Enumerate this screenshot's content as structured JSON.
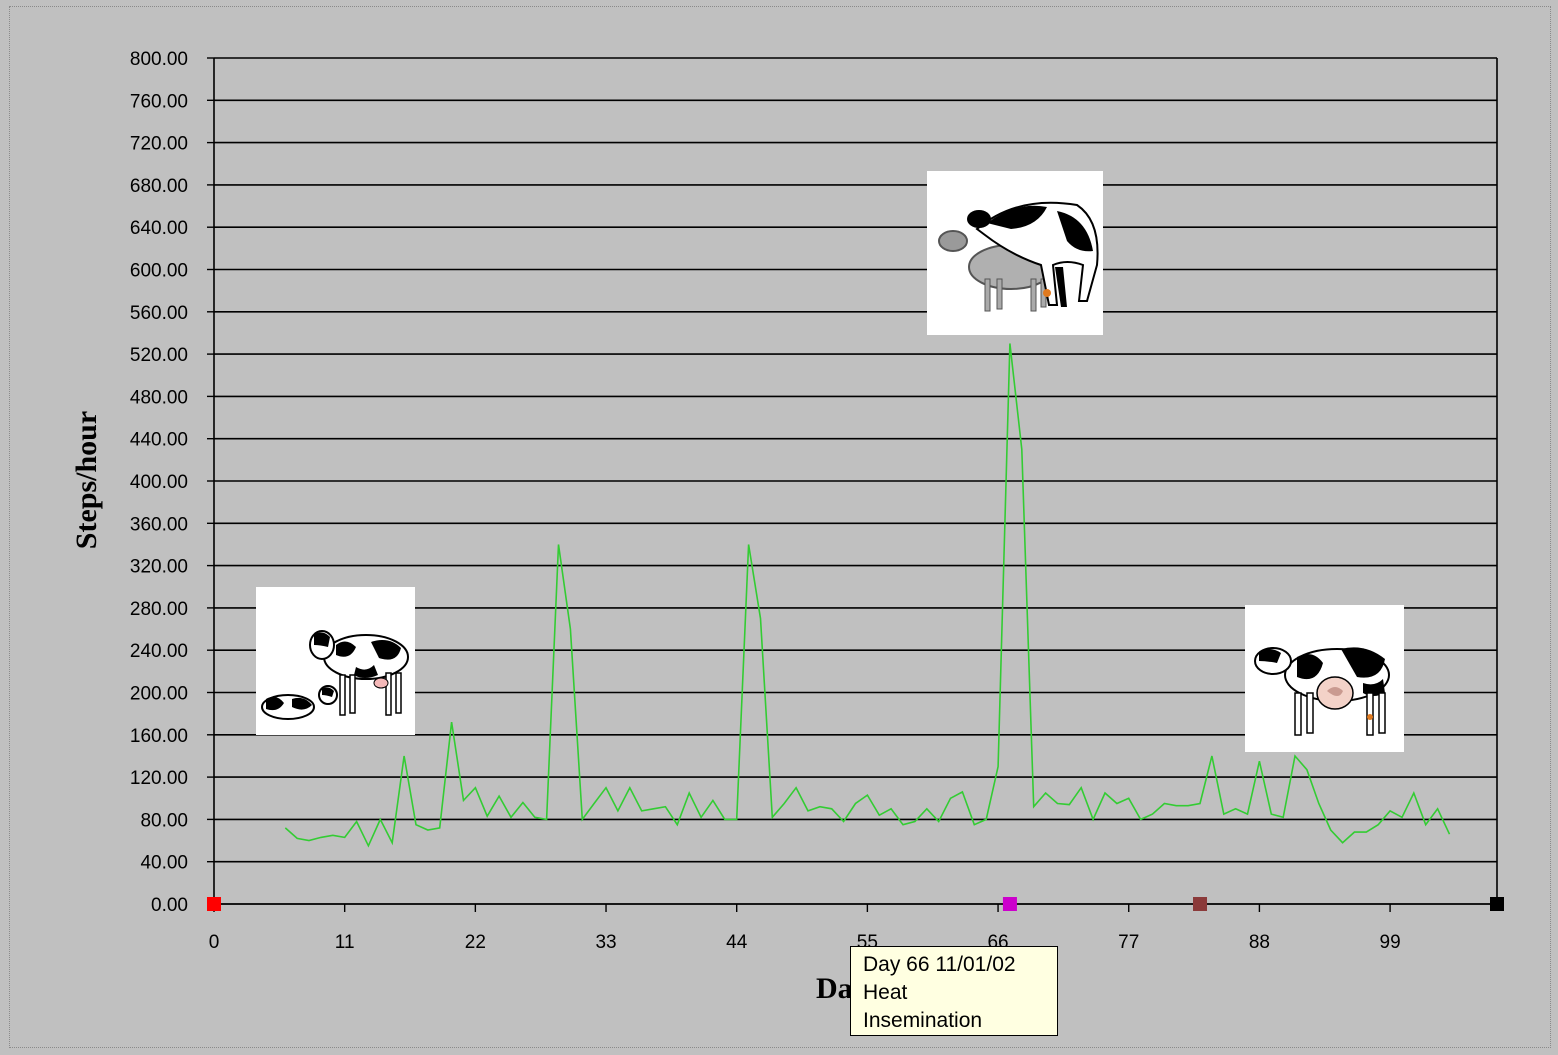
{
  "chart_data": {
    "type": "line",
    "title": "",
    "xlabel": "Da",
    "ylabel": "Steps/hour",
    "xlim": [
      0,
      108
    ],
    "ylim": [
      0,
      800
    ],
    "x_ticks": [
      "0",
      "11",
      "22",
      "33",
      "44",
      "55",
      "66",
      "77",
      "88",
      "99"
    ],
    "x_tick_values": [
      0,
      11,
      22,
      33,
      44,
      55,
      66,
      77,
      88,
      99
    ],
    "y_ticks": [
      "0.00",
      "40.00",
      "80.00",
      "120.00",
      "160.00",
      "200.00",
      "240.00",
      "280.00",
      "320.00",
      "360.00",
      "400.00",
      "440.00",
      "480.00",
      "520.00",
      "560.00",
      "600.00",
      "640.00",
      "680.00",
      "720.00",
      "760.00",
      "800.00"
    ],
    "grid": "horizontal",
    "series": [
      {
        "color": "#33cc33",
        "x": [
          6,
          7,
          8,
          9,
          10,
          11,
          12,
          13,
          14,
          15,
          16,
          17,
          18,
          19,
          20,
          21,
          22,
          23,
          24,
          25,
          26,
          27,
          28,
          29,
          30,
          31,
          32,
          33,
          34,
          35,
          36,
          37,
          38,
          39,
          40,
          41,
          42,
          43,
          44,
          45,
          46,
          47,
          48,
          49,
          50,
          51,
          52,
          53,
          54,
          55,
          56,
          57,
          58,
          59,
          60,
          61,
          62,
          63,
          64,
          65,
          66,
          67,
          68,
          69,
          70,
          71,
          72,
          73,
          74,
          75,
          76,
          77,
          78,
          79,
          80,
          81,
          82,
          83,
          84,
          85,
          86,
          87,
          88,
          89,
          90,
          91,
          92,
          93,
          94,
          95,
          96,
          97,
          98,
          99,
          100,
          101,
          102,
          103,
          104
        ],
        "y": [
          72,
          62,
          60,
          63,
          65,
          63,
          78,
          55,
          80,
          58,
          140,
          75,
          70,
          72,
          172,
          98,
          110,
          83,
          102,
          82,
          96,
          82,
          80,
          340,
          260,
          80,
          95,
          110,
          88,
          110,
          88,
          90,
          92,
          75,
          105,
          82,
          98,
          80,
          80,
          340,
          270,
          82,
          95,
          110,
          88,
          92,
          90,
          78,
          95,
          103,
          84,
          90,
          75,
          78,
          90,
          78,
          100,
          106,
          75,
          80,
          130,
          530,
          430,
          92,
          105,
          95,
          94,
          110,
          80,
          105,
          95,
          100,
          80,
          85,
          95,
          93,
          93,
          95,
          140,
          85,
          90,
          85,
          135,
          85,
          82,
          140,
          127,
          95,
          70,
          58,
          68,
          68,
          75,
          88,
          82,
          105,
          75,
          90,
          66
        ]
      }
    ],
    "markers": [
      {
        "x": 0,
        "y": 0,
        "color": "#ff0000"
      },
      {
        "x": 67,
        "y": 0,
        "color": "#cc00cc"
      },
      {
        "x": 83,
        "y": 0,
        "color": "#8b3a3a"
      },
      {
        "x": 108,
        "y": 0,
        "color": "#000000"
      }
    ]
  },
  "tooltip": {
    "line1": "Day 66  11/01/02",
    "line2": "Heat",
    "line3": "Insemination"
  },
  "pictures": [
    {
      "name": "cow-with-calf-picture"
    },
    {
      "name": "cows-mounting-picture"
    },
    {
      "name": "pregnant-cow-picture"
    }
  ]
}
